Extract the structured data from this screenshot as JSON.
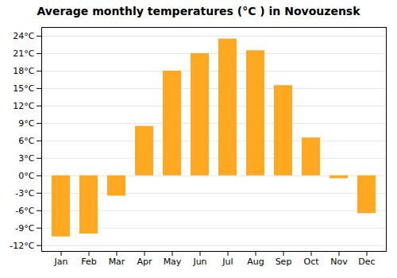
{
  "chart_data": {
    "type": "bar",
    "title": "Average monthly temperatures (°C ) in Novouzensk",
    "categories": [
      "Jan",
      "Feb",
      "Mar",
      "Apr",
      "May",
      "Jun",
      "Jul",
      "Aug",
      "Sep",
      "Oct",
      "Nov",
      "Dec"
    ],
    "values": [
      -10.5,
      -10.0,
      -3.5,
      8.5,
      18.0,
      21.0,
      23.5,
      21.5,
      15.5,
      6.5,
      -0.5,
      -6.5
    ],
    "color": "#FFA820",
    "ylim": [
      -13,
      25.5
    ],
    "yticks": [
      {
        "value": -12,
        "label": "-12°C"
      },
      {
        "value": -9,
        "label": "-9°C"
      },
      {
        "value": -6,
        "label": "-6°C"
      },
      {
        "value": -3,
        "label": "-3°C"
      },
      {
        "value": 0,
        "label": "0°C"
      },
      {
        "value": 3,
        "label": "3°C"
      },
      {
        "value": 6,
        "label": "6°C"
      },
      {
        "value": 9,
        "label": "9°C"
      },
      {
        "value": 12,
        "label": "12°C"
      },
      {
        "value": 15,
        "label": "15°C"
      },
      {
        "value": 18,
        "label": "18°C"
      },
      {
        "value": 21,
        "label": "21°C"
      },
      {
        "value": 24,
        "label": "24°C"
      }
    ],
    "grid": true
  }
}
